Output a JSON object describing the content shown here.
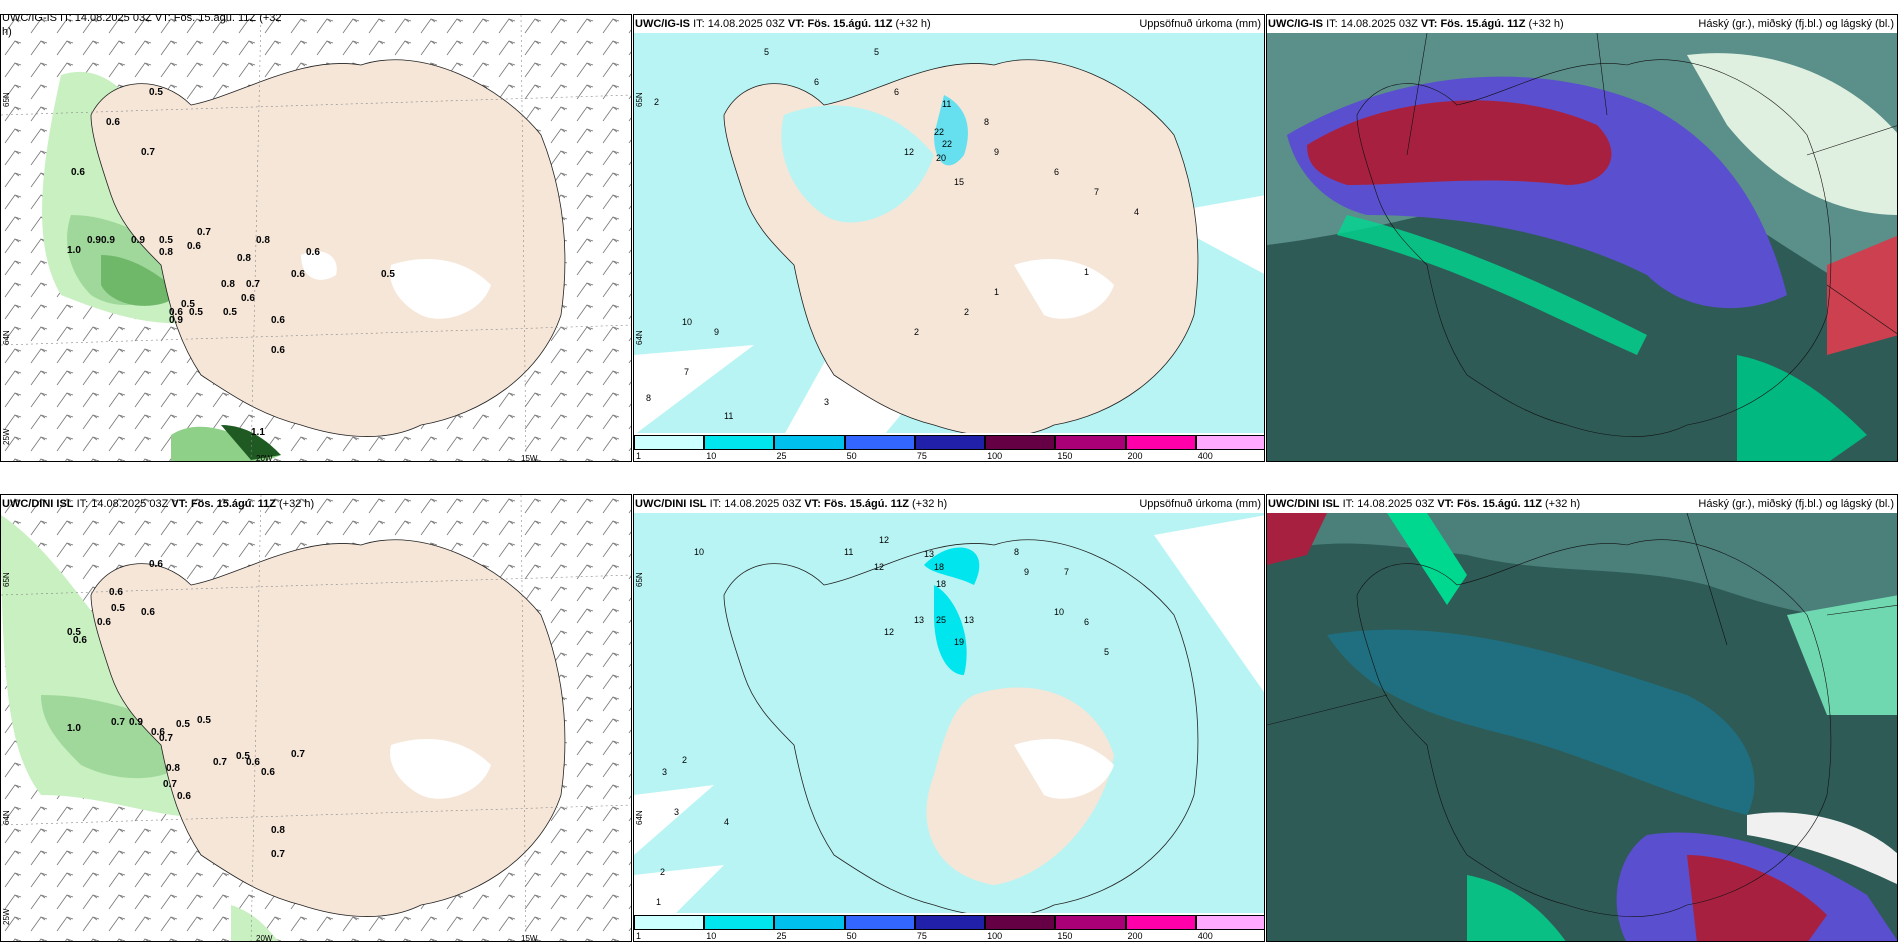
{
  "panels": [
    {
      "id": "p1",
      "model": "UWC/IG-IS",
      "it_label": "IT:",
      "it": "14.08.2025 03Z",
      "vt_label": "VT:",
      "vt": "Fös. 15.ágú. 11Z",
      "lead": "(+32 h)",
      "right": "",
      "cut_title": "UWC/IG-IS IT: 14.08.2025 03Z VT: Fös. 15.ágú. 11Z (+32",
      "cut_title2": "h)"
    },
    {
      "id": "p2",
      "model": "UWC/IG-IS",
      "it_label": "IT:",
      "it": "14.08.2025 03Z",
      "vt_label": "VT:",
      "vt": "Fös. 15.ágú. 11Z",
      "lead": "(+32 h)",
      "right": "Uppsöfnuð úrkoma (mm)"
    },
    {
      "id": "p3",
      "model": "UWC/IG-IS",
      "it_label": "IT:",
      "it": "14.08.2025 03Z",
      "vt_label": "VT:",
      "vt": "Fös. 15.ágú. 11Z",
      "lead": "(+32 h)",
      "right": "Háský (gr.), miðský (fj.bl.) og lágský (bl.)"
    },
    {
      "id": "p4",
      "model": "UWC/DINI ISL",
      "it_label": "IT:",
      "it": "14.08.2025 03Z",
      "vt_label": "VT:",
      "vt": "Fös. 15.ágú. 11Z",
      "lead": "(+32 h)",
      "right": ""
    },
    {
      "id": "p5",
      "model": "UWC/DINI ISL",
      "it_label": "IT:",
      "it": "14.08.2025 03Z",
      "vt_label": "VT:",
      "vt": "Fös. 15.ágú. 11Z",
      "lead": "(+32 h)",
      "right": "Uppsöfnuð úrkoma (mm)"
    },
    {
      "id": "p6",
      "model": "UWC/DINI ISL",
      "it_label": "IT:",
      "it": "14.08.2025 03Z",
      "vt_label": "VT:",
      "vt": "Fös. 15.ágú. 11Z",
      "lead": "(+32 h)",
      "right": "Háský (gr.), miðský (fj.bl.) og lágský (bl.)"
    }
  ],
  "axes": {
    "lat": "65N",
    "lat2": "64N",
    "lon1": "20W",
    "lon2": "15W",
    "lon3": "25W"
  },
  "colorbar": {
    "ticks": [
      "1",
      "10",
      "25",
      "50",
      "75",
      "100",
      "150",
      "200",
      "400"
    ],
    "colors": [
      "#ccffff",
      "#00e5ee",
      "#00c0ee",
      "#3366ff",
      "#2020aa",
      "#660044",
      "#aa0077",
      "#ff00aa",
      "#ffaaff"
    ]
  },
  "colors": {
    "land": "#f5e6d8",
    "precip_light": "#b8f4f4",
    "gust_green": "#c8f0c0",
    "cloud_dark": "#2e5b56",
    "cloud_red": "#a82040",
    "cloud_blue": "#5a4fcf",
    "cloud_green": "#00d890"
  },
  "values": {
    "p1": [
      "0.5",
      "0.6",
      "0.7",
      "0.6",
      "0.9",
      "0.9",
      "0.9",
      "0.5",
      "0.8",
      "0.6",
      "0.7",
      "0.8",
      "0.6",
      "1.0",
      "0.8",
      "0.7",
      "0.6",
      "0.5",
      "0.5",
      "0.6",
      "0.6",
      "0.6",
      "0.6",
      "0.8",
      "0.5",
      "0.9",
      "0.5",
      "1.1"
    ],
    "p2": [
      "5",
      "5",
      "6",
      "2",
      "6",
      "22",
      "22",
      "20",
      "15",
      "11",
      "12",
      "8",
      "9",
      "6",
      "7",
      "4",
      "10",
      "9",
      "7",
      "8",
      "11",
      "3",
      "2",
      "2",
      "1",
      "1"
    ],
    "p4": [
      "0.6",
      "0.6",
      "0.5",
      "0.6",
      "0.6",
      "0.5",
      "0.6",
      "1.0",
      "0.9",
      "0.7",
      "0.6",
      "0.5",
      "0.7",
      "0.8",
      "0.7",
      "0.6",
      "0.7",
      "0.5",
      "0.6",
      "0.6",
      "0.7",
      "0.8",
      "0.7",
      "0.5"
    ],
    "p5": [
      "10",
      "12",
      "13",
      "11",
      "12",
      "18",
      "18",
      "25",
      "13",
      "19",
      "12",
      "13",
      "8",
      "9",
      "7",
      "6",
      "10",
      "5",
      "3",
      "2",
      "4",
      "3",
      "1",
      "2"
    ]
  }
}
